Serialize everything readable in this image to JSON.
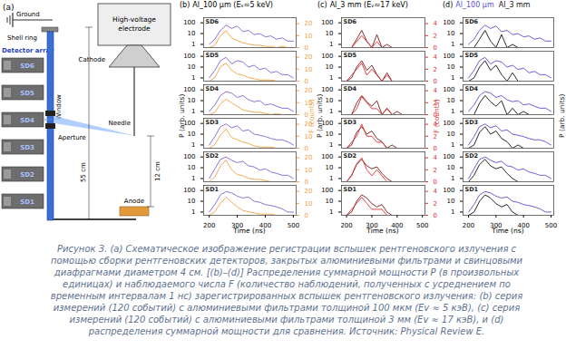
{
  "diagram": {
    "label": "(a)",
    "ground": "Ground",
    "shell_ring": "Shell ring",
    "detector_array": "Detector array",
    "detectors": [
      "SD6",
      "SD5",
      "SD4",
      "SD3",
      "SD2",
      "SD1"
    ],
    "window": "Window",
    "electrode": "High-voltage electrode",
    "cathode": "Cathode",
    "needle": "Needle",
    "aperture": "Aperture",
    "anode": "Anode",
    "needle_gap": "12 cm",
    "height": "55 cm"
  },
  "chart_data": [
    {
      "type": "line",
      "panel": "(b)",
      "title": "Al_100 µm (Eᵥ≈5 keV)",
      "x_label": "Time (ns)",
      "y_label": "P (arb. units)",
      "y2_label": "F (counts)",
      "log": "y",
      "xlim": [
        180,
        510
      ],
      "xticks": [
        200,
        300,
        400,
        500
      ],
      "ylim": [
        0.5,
        300
      ],
      "yticks": [
        1,
        10,
        100
      ],
      "y2lim": [
        0,
        25
      ],
      "y2ticks": [
        0,
        10,
        20
      ],
      "x": [
        200,
        220,
        240,
        260,
        280,
        300,
        320,
        340,
        360,
        380,
        400,
        420,
        440,
        460,
        480,
        500
      ],
      "series": [
        {
          "color": "#7f62d6"
        },
        {
          "color": "#f0a040",
          "axis": "y2"
        }
      ],
      "subplots": [
        {
          "label": "SD6",
          "values": [
            [
              1,
              3,
              20,
              60,
              30,
              50,
              15,
              20,
              8,
              10,
              5,
              6,
              3,
              4,
              2,
              2
            ],
            [
              0,
              2,
              10,
              14,
              8,
              6,
              4,
              3,
              2,
              2,
              1,
              1,
              0,
              1,
              0,
              0
            ]
          ]
        },
        {
          "label": "SD5",
          "values": [
            [
              1,
              5,
              40,
              80,
              20,
              40,
              30,
              10,
              15,
              6,
              8,
              3,
              4,
              2,
              2,
              1
            ],
            [
              0,
              3,
              12,
              15,
              9,
              6,
              5,
              3,
              2,
              1,
              1,
              1,
              0,
              0,
              0,
              0
            ]
          ]
        },
        {
          "label": "SD4",
          "values": [
            [
              1,
              4,
              30,
              70,
              50,
              20,
              30,
              12,
              8,
              10,
              4,
              5,
              3,
              2,
              2,
              1
            ],
            [
              0,
              2,
              9,
              13,
              10,
              7,
              4,
              3,
              2,
              2,
              1,
              0,
              1,
              0,
              0,
              0
            ]
          ]
        },
        {
          "label": "SD3",
          "values": [
            [
              1,
              6,
              50,
              90,
              40,
              60,
              20,
              25,
              10,
              8,
              6,
              4,
              3,
              3,
              2,
              1
            ],
            [
              0,
              3,
              11,
              16,
              9,
              7,
              5,
              4,
              2,
              1,
              1,
              1,
              0,
              0,
              0,
              0
            ]
          ]
        },
        {
          "label": "SD2",
          "values": [
            [
              1,
              8,
              60,
              100,
              50,
              30,
              40,
              15,
              12,
              6,
              8,
              4,
              3,
              2,
              2,
              1
            ],
            [
              0,
              4,
              13,
              18,
              10,
              6,
              5,
              3,
              2,
              2,
              1,
              0,
              0,
              0,
              0,
              0
            ]
          ]
        },
        {
          "label": "SD1",
          "values": [
            [
              1,
              5,
              40,
              80,
              60,
              30,
              20,
              25,
              10,
              8,
              5,
              4,
              3,
              2,
              1,
              1
            ],
            [
              0,
              3,
              10,
              15,
              11,
              7,
              4,
              3,
              2,
              1,
              1,
              1,
              0,
              0,
              0,
              0
            ]
          ]
        }
      ]
    },
    {
      "type": "line",
      "panel": "(c)",
      "title": "Al_3 mm (Eᵥ≈17 keV)",
      "x_label": "Time (ns)",
      "y_label": "P (arb. units)",
      "y2_label": "F (counts)",
      "log": "y",
      "xlim": [
        180,
        510
      ],
      "xticks": [
        200,
        300,
        400,
        500
      ],
      "ylim": [
        0.5,
        300
      ],
      "yticks": [
        1,
        10,
        100
      ],
      "y2lim": [
        0,
        5
      ],
      "y2ticks": [
        0,
        2,
        4
      ],
      "x": [
        200,
        220,
        240,
        260,
        280,
        300,
        320,
        340,
        360,
        380,
        400,
        420,
        440,
        460,
        480,
        500
      ],
      "series": [
        {
          "color": "#7a1616"
        },
        {
          "color": "#e03030",
          "axis": "y2"
        }
      ],
      "subplots": [
        {
          "label": "SD6",
          "values": [
            [
              0.5,
              0.5,
              3,
              20,
              2,
              0.5,
              8,
              0.5,
              1,
              0.5,
              0.5,
              0.5,
              0.5,
              0.5,
              0.5,
              0.5
            ],
            [
              0,
              0,
              1,
              2,
              1,
              0,
              1,
              0,
              0,
              0,
              0,
              0,
              0,
              0,
              0,
              0
            ]
          ]
        },
        {
          "label": "SD5",
          "values": [
            [
              0.5,
              1,
              10,
              40,
              5,
              15,
              2,
              0.5,
              3,
              0.5,
              0.5,
              0.5,
              0.5,
              0.5,
              0.5,
              0.5
            ],
            [
              0,
              1,
              2,
              3,
              1,
              2,
              1,
              0,
              1,
              0,
              0,
              0,
              0,
              0,
              0,
              0
            ]
          ]
        },
        {
          "label": "SD4",
          "values": [
            [
              0.5,
              0.5,
              6,
              30,
              8,
              3,
              10,
              0.5,
              2,
              0.5,
              1,
              0.5,
              0.5,
              0.5,
              0.5,
              0.5
            ],
            [
              0,
              0,
              1,
              3,
              2,
              1,
              1,
              0,
              1,
              0,
              0,
              0,
              0,
              0,
              0,
              0
            ]
          ]
        },
        {
          "label": "SD3",
          "values": [
            [
              0.5,
              1,
              15,
              50,
              10,
              20,
              4,
              2,
              0.5,
              1,
              0.5,
              0.5,
              0.5,
              0.5,
              0.5,
              0.5
            ],
            [
              0,
              1,
              2,
              4,
              2,
              2,
              1,
              1,
              0,
              0,
              0,
              0,
              0,
              0,
              0,
              0
            ]
          ]
        },
        {
          "label": "SD2",
          "values": [
            [
              0.5,
              2,
              20,
              60,
              15,
              8,
              12,
              3,
              1,
              0.5,
              0.5,
              0.5,
              0.5,
              0.5,
              0.5,
              0.5
            ],
            [
              0,
              1,
              3,
              4,
              2,
              1,
              2,
              1,
              0,
              0,
              0,
              0,
              0,
              0,
              0,
              0
            ]
          ]
        },
        {
          "label": "SD1",
          "values": [
            [
              0.5,
              1,
              10,
              40,
              20,
              6,
              3,
              5,
              1,
              0.5,
              0.5,
              0.5,
              0.5,
              0.5,
              0.5,
              0.5
            ],
            [
              0,
              1,
              2,
              3,
              2,
              1,
              1,
              1,
              0,
              0,
              0,
              0,
              0,
              0,
              0,
              0
            ]
          ]
        }
      ]
    },
    {
      "type": "line",
      "panel": "(d)",
      "x_label": "Time (ns)",
      "y_label": "P (arb. units)",
      "log": "y",
      "xlim": [
        180,
        510
      ],
      "xticks": [
        200,
        300,
        400,
        500
      ],
      "ylim": [
        0.5,
        300
      ],
      "yticks": [
        1,
        10,
        100
      ],
      "x": [
        200,
        220,
        240,
        260,
        280,
        300,
        320,
        340,
        360,
        380,
        400,
        420,
        440,
        460,
        480,
        500
      ],
      "series": [
        {
          "name": "Al_100 µm",
          "color": "#5a4fcf"
        },
        {
          "name": "Al_3 mm",
          "color": "#111111"
        }
      ],
      "subplots": [
        {
          "label": "SD6",
          "values": [
            [
              1,
              3,
              20,
              60,
              30,
              50,
              15,
              20,
              8,
              10,
              5,
              6,
              3,
              4,
              2,
              2
            ],
            [
              0.5,
              0.5,
              3,
              20,
              2,
              0.5,
              8,
              0.5,
              1,
              0.5,
              0.5,
              0.5,
              0.5,
              0.5,
              0.5,
              0.5
            ]
          ]
        },
        {
          "label": "SD5",
          "values": [
            [
              1,
              5,
              40,
              80,
              20,
              40,
              30,
              10,
              15,
              6,
              8,
              3,
              4,
              2,
              2,
              1
            ],
            [
              0.5,
              1,
              10,
              40,
              5,
              15,
              2,
              0.5,
              3,
              0.5,
              0.5,
              0.5,
              0.5,
              0.5,
              0.5,
              0.5
            ]
          ]
        },
        {
          "label": "SD4",
          "values": [
            [
              1,
              4,
              30,
              70,
              50,
              20,
              30,
              12,
              8,
              10,
              4,
              5,
              3,
              2,
              2,
              1
            ],
            [
              0.5,
              0.5,
              6,
              30,
              8,
              3,
              10,
              0.5,
              2,
              0.5,
              1,
              0.5,
              0.5,
              0.5,
              0.5,
              0.5
            ]
          ]
        },
        {
          "label": "SD3",
          "values": [
            [
              1,
              6,
              50,
              90,
              40,
              60,
              20,
              25,
              10,
              8,
              6,
              4,
              3,
              3,
              2,
              1
            ],
            [
              0.5,
              1,
              15,
              50,
              10,
              20,
              4,
              2,
              0.5,
              1,
              0.5,
              0.5,
              0.5,
              0.5,
              0.5,
              0.5
            ]
          ]
        },
        {
          "label": "SD2",
          "values": [
            [
              1,
              8,
              60,
              100,
              50,
              30,
              40,
              15,
              12,
              6,
              8,
              4,
              3,
              2,
              2,
              1
            ],
            [
              0.5,
              2,
              20,
              60,
              15,
              8,
              12,
              3,
              1,
              0.5,
              0.5,
              0.5,
              0.5,
              0.5,
              0.5,
              0.5
            ]
          ]
        },
        {
          "label": "SD1",
          "values": [
            [
              1,
              5,
              40,
              80,
              60,
              30,
              20,
              25,
              10,
              8,
              5,
              4,
              3,
              2,
              1,
              1
            ],
            [
              0.5,
              1,
              10,
              40,
              20,
              6,
              3,
              5,
              1,
              0.5,
              0.5,
              0.5,
              0.5,
              0.5,
              0.5,
              0.5
            ]
          ]
        }
      ]
    }
  ],
  "caption": "Рисунок 3. (a) Схематическое изображение регистрации вспышек рентгеновского излучения с помощью сборки рентгеновских детекторов, закрытых алюминиевыми фильтрами и свинцовыми диафрагмами диаметром 4 см. [(b)–(d)] Распределения суммарной мощности P (в произвольных единицах) и наблюдаемого числа F (количество наблюдений, полученных с усреднением по временным интервалам 1 нс) зарегистрированных вспышек рентгеновского излучения: (b) серия измерений (120 событий) с алюминиевыми фильтрами толщиной 100 мкм (Ev ≈ 5 кэВ), (c) серия измерений (120 событий) с алюминиевыми фильтрами толщиной 3 мм (Ev ≈ 17 кэВ), и (d) распределения суммарной мощности для сравнения. Источник: Physical Review E."
}
